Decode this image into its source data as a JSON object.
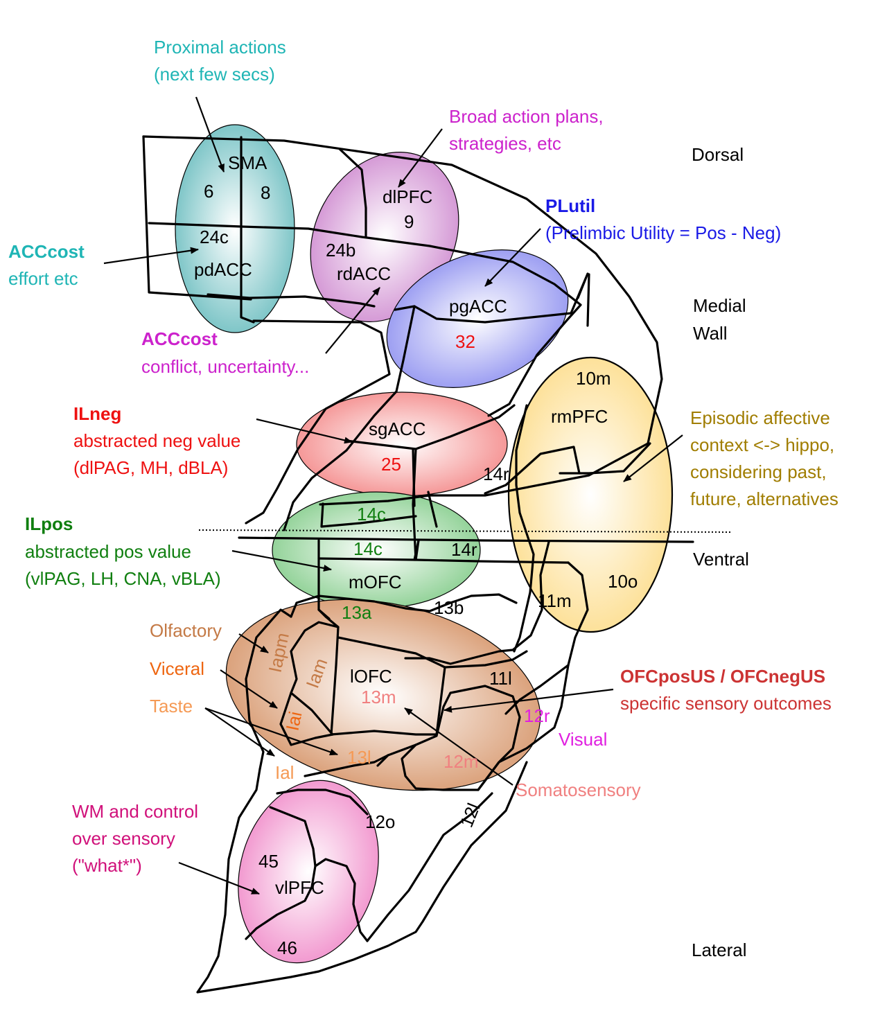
{
  "colors": {
    "cyan": "#1fb5b5",
    "magenta": "#cc22cc",
    "blue": "#1a1ae6",
    "red": "#ee1111",
    "green": "#107f10",
    "olive": "#a07d00",
    "brown": "#c47a46",
    "orange": "#ee6611",
    "taste": "#f59a55",
    "salmon": "#f08080",
    "visual": "#e020e0",
    "crimson": "#cc3333",
    "wm": "#d0107a"
  },
  "regions": {
    "sma": {
      "name": "SMA",
      "a": "6",
      "b": "8",
      "color": "#7fc6c8"
    },
    "acc_dorsal": {
      "area": "24c",
      "name": "pdACC"
    },
    "dlpfc": {
      "name": "dlPFC",
      "area": "9",
      "color": "#d59ad6"
    },
    "rdacc": {
      "area": "24b",
      "name": "rdACC"
    },
    "pgacc": {
      "name": "pgACC",
      "area": "32",
      "color": "#9d9ff2"
    },
    "sgacc": {
      "name": "sgACC",
      "area": "25",
      "color": "#f59898"
    },
    "area14r_upper": "14r",
    "area14c_upper": "14c",
    "area14c_lower": "14c",
    "area14r_lower": "14r",
    "mofc": {
      "name": "mOFC",
      "color": "#94d39a"
    },
    "area13a": "13a",
    "area13b": "13b",
    "rmpfc": {
      "area_top": "10m",
      "name": "rmPFC",
      "area_bottom": "10o",
      "color": "#fde19a"
    },
    "area11m": "11m",
    "lofc": {
      "name": "lOFC",
      "area": "13m",
      "color": "#dba27c"
    },
    "iapm": "Iapm",
    "iam": "Iam",
    "iai": "Iai",
    "iai_lower": "Ial",
    "area11l": "11l",
    "area12r": "12r",
    "area13l": "13l",
    "area12m": "12m",
    "area12l": "12l",
    "area12o": "12o",
    "vlpfc": {
      "name": "vlPFC",
      "a": "45",
      "b": "46",
      "color": "#f29ad0"
    }
  },
  "annotations": {
    "proximal": {
      "line1": "Proximal actions",
      "line2": "(next few secs)"
    },
    "broad": {
      "line1": "Broad action plans,",
      "line2": "strategies, etc"
    },
    "plutil": {
      "title": "PLutil",
      "desc": "(Prelimbic Utility = Pos - Neg)"
    },
    "acccost_effort": {
      "title": "ACCcost",
      "desc": "effort etc"
    },
    "acccost_conflict": {
      "title": "ACCcost",
      "desc": "conflict, uncertainty..."
    },
    "ilneg": {
      "title": "ILneg",
      "line1": "abstracted neg value",
      "line2": "(dlPAG, MH, dBLA)"
    },
    "ilpos": {
      "title": "ILpos",
      "line1": "abstracted pos value",
      "line2": "(vlPAG, LH, CNA, vBLA)"
    },
    "episodic": {
      "line1": "Episodic affective",
      "line2": "context <-> hippo,",
      "line3": "considering past,",
      "line4": "future, alternatives"
    },
    "ofcus": {
      "title": "OFCposUS / OFCnegUS",
      "desc": "specific sensory outcomes"
    },
    "olfactory": "Olfactory",
    "viceral": "Viceral",
    "taste": "Taste",
    "visual": "Visual",
    "somatosensory": "Somatosensory",
    "wm": {
      "line1": "WM and control",
      "line2": "over sensory",
      "line3": "(\"what*\")"
    }
  },
  "orientation": {
    "dorsal": "Dorsal",
    "medial_line1": "Medial",
    "medial_line2": "Wall",
    "ventral": "Ventral",
    "lateral": "Lateral"
  }
}
